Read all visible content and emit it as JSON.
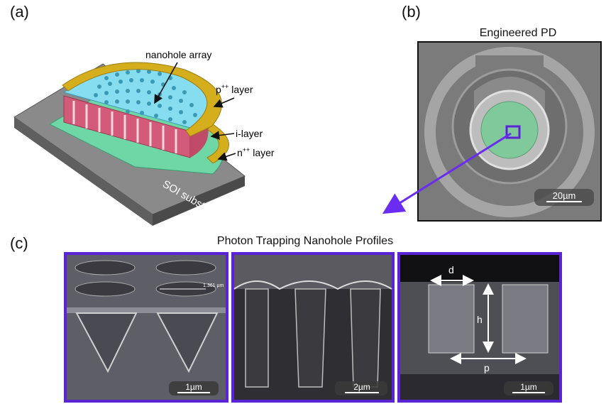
{
  "panels": {
    "a": {
      "label": "(a)",
      "annotations": {
        "nanohole": "nanohole array",
        "p_layer_base": "p",
        "p_layer_sup": "++",
        "p_layer_rest": " layer",
        "i_layer": "i-layer",
        "n_layer_base": "n",
        "n_layer_sup": "++",
        "n_layer_rest": " layer",
        "substrate": "SOI substrate"
      }
    },
    "b": {
      "label": "(b)",
      "title": "Engineered PD",
      "scalebar": "20µm"
    },
    "c": {
      "label": "(c)",
      "title": "Photon Trapping Nanohole Profiles",
      "images": [
        {
          "scalebar": "1µm",
          "measure": "1.361 µm"
        },
        {
          "scalebar": "2µm"
        },
        {
          "scalebar": "1µm",
          "dim_d": "d",
          "dim_h": "h",
          "dim_p": "p"
        }
      ]
    }
  },
  "colors": {
    "frame": "#5a23d6",
    "arrow": "#6a2cf0",
    "gold": "#d4ae1c",
    "cyan": "#86ddf0",
    "pink": "#d35a78",
    "green": "#6fd6a6",
    "gray": "#707070"
  }
}
